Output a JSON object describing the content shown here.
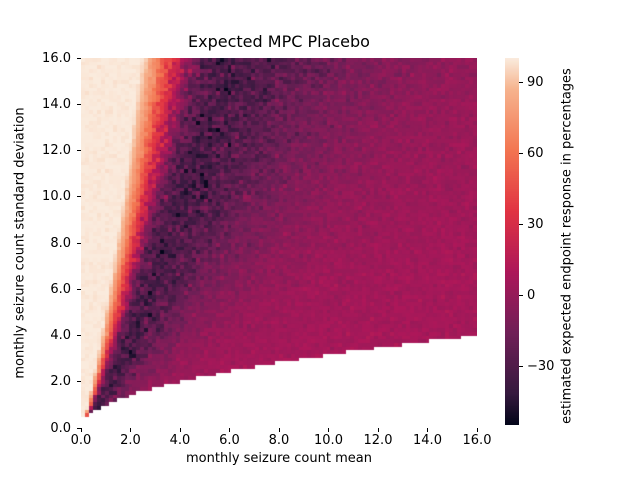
{
  "chart_data": {
    "type": "heatmap",
    "title": "Expected MPC Placebo",
    "xlabel": "monthly seizure count mean",
    "ylabel": "monthly seizure count standard deviation",
    "colorbar_label": "estimated expected endpoint response in percentages",
    "xlim": [
      0,
      16
    ],
    "ylim": [
      0,
      16
    ],
    "xticks": [
      {
        "value": 0,
        "label": "0.0"
      },
      {
        "value": 2,
        "label": "2.0"
      },
      {
        "value": 4,
        "label": "4.0"
      },
      {
        "value": 6,
        "label": "6.0"
      },
      {
        "value": 8,
        "label": "8.0"
      },
      {
        "value": 10,
        "label": "10.0"
      },
      {
        "value": 12,
        "label": "12.0"
      },
      {
        "value": 14,
        "label": "14.0"
      },
      {
        "value": 16,
        "label": "16.0"
      }
    ],
    "yticks": [
      {
        "value": 0,
        "label": "0.0"
      },
      {
        "value": 2,
        "label": "2.0"
      },
      {
        "value": 4,
        "label": "4.0"
      },
      {
        "value": 6,
        "label": "6.0"
      },
      {
        "value": 8,
        "label": "8.0"
      },
      {
        "value": 10,
        "label": "10.0"
      },
      {
        "value": 12,
        "label": "12.0"
      },
      {
        "value": 14,
        "label": "14.0"
      },
      {
        "value": 16,
        "label": "16.0"
      }
    ],
    "colorbar_ticks": [
      {
        "value": 90,
        "label": "90"
      },
      {
        "value": 60,
        "label": "60"
      },
      {
        "value": 30,
        "label": "30"
      },
      {
        "value": 0,
        "label": "0"
      },
      {
        "value": -30,
        "label": "−30"
      }
    ],
    "vmin": -54.5,
    "vmax": 100.5,
    "grid": {
      "nx": 100,
      "ny": 100
    },
    "grid_on": false,
    "legend": "none",
    "valid_region": "cells drawn only where sd >= sqrt(mean) and sd >= 0.5 (white elsewhere)",
    "valid_min_sd": 0.5,
    "colormap": {
      "name": "rocket",
      "stops": [
        {
          "t": 0.0,
          "color": "#03051A"
        },
        {
          "t": 0.083,
          "color": "#35193E"
        },
        {
          "t": 0.25,
          "color": "#701F57"
        },
        {
          "t": 0.417,
          "color": "#AD1759"
        },
        {
          "t": 0.583,
          "color": "#E13342"
        },
        {
          "t": 0.75,
          "color": "#F37651"
        },
        {
          "t": 0.917,
          "color": "#F6B48F"
        },
        {
          "t": 1.0,
          "color": "#FAEBDD"
        }
      ]
    },
    "value_model": {
      "description": "expected MPC (%) depends on h = sd / mean^1.25; piecewise-linear profile [h, value]; Monte-Carlo speckle noise with sd from noise profile [h, sigma]",
      "exponent": 1.25,
      "profile": [
        [
          0.0,
          8
        ],
        [
          0.2,
          7
        ],
        [
          0.35,
          4
        ],
        [
          0.5,
          0
        ],
        [
          0.62,
          -5
        ],
        [
          0.8,
          -12
        ],
        [
          1.0,
          -20
        ],
        [
          1.25,
          -27
        ],
        [
          1.55,
          -33
        ],
        [
          1.9,
          -30
        ],
        [
          2.25,
          -20
        ],
        [
          2.55,
          0
        ],
        [
          2.9,
          25
        ],
        [
          3.3,
          45
        ],
        [
          3.9,
          70
        ],
        [
          4.6,
          88
        ],
        [
          5.2,
          100
        ],
        [
          99,
          100
        ]
      ],
      "noise_sd_profile": [
        [
          0.0,
          2.2
        ],
        [
          0.35,
          2.8
        ],
        [
          0.62,
          4
        ],
        [
          1.0,
          7
        ],
        [
          1.4,
          9.5
        ],
        [
          2.3,
          10
        ],
        [
          2.9,
          8
        ],
        [
          3.4,
          5
        ],
        [
          4.2,
          2
        ],
        [
          4.9,
          1
        ],
        [
          99,
          0.8
        ]
      ],
      "seed": 42
    },
    "text_color": "#000000",
    "background": "#ffffff"
  }
}
